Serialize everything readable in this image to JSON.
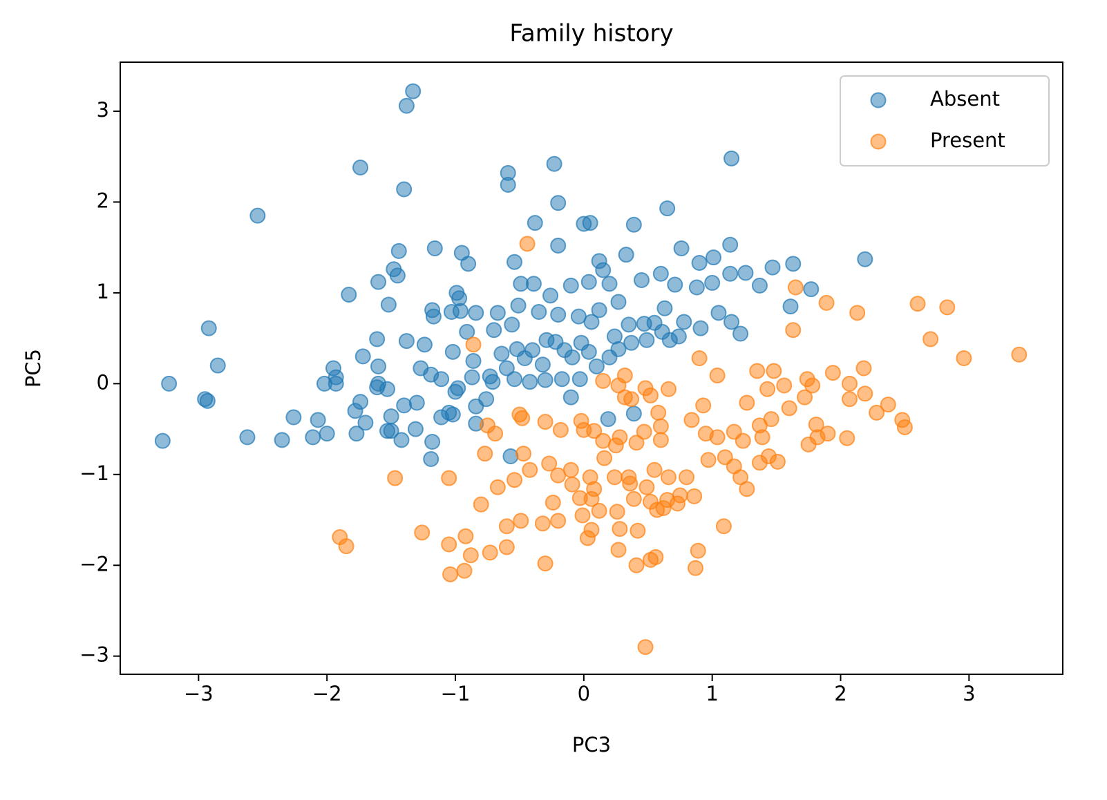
{
  "chart_data": {
    "type": "scatter",
    "title": "Family history",
    "xlabel": "PC3",
    "ylabel": "PC5",
    "xlim": [
      -3.61,
      3.73
    ],
    "ylim": [
      -3.2,
      3.54
    ],
    "xticks": [
      {
        "value": -3,
        "label": "−3"
      },
      {
        "value": -2,
        "label": "−2"
      },
      {
        "value": -1,
        "label": "−1"
      },
      0,
      1,
      2,
      3
    ],
    "yticks": [
      {
        "value": -3,
        "label": "−3"
      },
      {
        "value": -2,
        "label": "−2"
      },
      {
        "value": -1,
        "label": "−1"
      },
      0,
      1,
      2,
      3
    ],
    "legend_position": "upper right",
    "alpha": 0.5,
    "series": [
      {
        "name": "Absent",
        "color": "#1f77b4",
        "x": [
          -1.33,
          -1.38,
          -1.74,
          -1.4,
          -2.54,
          -0.59,
          -0.59,
          -0.23,
          -0.2,
          1.15,
          0.65,
          -0.38,
          0,
          0.05,
          0.39,
          -0.2,
          -1.16,
          -1.44,
          -0.95,
          -0.54,
          0.12,
          0.33,
          0.76,
          1.14,
          2.19,
          1.63,
          1.47,
          1.26,
          1.14,
          1.01,
          0.9,
          -0.9,
          -1.48,
          -1.45,
          -1.6,
          -1.83,
          -1.52,
          -0.99,
          -0.97,
          -1.18,
          -1.17,
          -1.03,
          -0.96,
          -0.84,
          -0.67,
          -0.49,
          -0.39,
          -0.26,
          -0.1,
          0.04,
          0.15,
          0.2,
          0.27,
          0.45,
          0.6,
          0.71,
          0.88,
          1.0,
          1.37,
          1.61,
          1.77,
          1.22,
          1.05,
          1.15,
          0.91,
          0.78,
          0.63,
          0.55,
          0.47,
          0.35,
          0.24,
          0.12,
          0.06,
          -0.04,
          -0.2,
          -0.35,
          -0.51,
          -0.56,
          -0.7,
          -0.91,
          -1.61,
          -1.38,
          -1.24,
          -1.72,
          -1.6,
          -1.6,
          -1.93,
          -2.02,
          -1.95,
          -1.93,
          -2.92,
          -2.85,
          -3.23,
          -2.95,
          -2.93,
          -3.28,
          -2.62,
          -2.35,
          -2.26,
          -2.07,
          -2.11,
          -2.0,
          -1.77,
          -1.7,
          -1.78,
          -1.74,
          -1.61,
          -1.53,
          -1.5,
          -1.53,
          -1.5,
          -1.42,
          -1.4,
          -1.31,
          -1.3,
          -1.19,
          -1.18,
          -1.11,
          -1.05,
          -1.02,
          -1.0,
          -1.02,
          -1.27,
          -1.19,
          -1.11,
          -0.98,
          -0.86,
          -0.87,
          -0.84,
          -0.84,
          -0.76,
          -0.71,
          -0.64,
          -0.6,
          -0.52,
          -0.46,
          -0.4,
          -0.32,
          -0.29,
          -0.22,
          -0.15,
          -0.09,
          -0.02,
          0.04,
          0.1,
          0.2,
          0.27,
          0.37,
          0.49,
          0.61,
          0.67,
          0.74,
          -0.42,
          -0.54,
          -0.73,
          -0.3,
          -0.17,
          -0.03,
          -0.1,
          0.19,
          0.39,
          -0.57
        ],
        "values": [
          3.22,
          3.06,
          2.38,
          2.14,
          1.85,
          2.32,
          2.19,
          2.42,
          1.99,
          2.48,
          1.93,
          1.77,
          1.76,
          1.77,
          1.75,
          1.52,
          1.49,
          1.46,
          1.44,
          1.34,
          1.35,
          1.42,
          1.49,
          1.53,
          1.37,
          1.32,
          1.28,
          1.22,
          1.21,
          1.39,
          1.33,
          1.32,
          1.26,
          1.19,
          1.12,
          0.98,
          0.87,
          1.0,
          0.94,
          0.81,
          0.74,
          0.79,
          0.8,
          0.78,
          0.78,
          1.1,
          1.1,
          0.97,
          1.08,
          1.12,
          1.25,
          1.1,
          0.9,
          1.14,
          1.21,
          1.09,
          1.06,
          1.11,
          1.08,
          0.85,
          1.04,
          0.55,
          0.78,
          0.68,
          0.61,
          0.68,
          0.83,
          0.67,
          0.66,
          0.65,
          0.52,
          0.81,
          0.68,
          0.74,
          0.76,
          0.79,
          0.86,
          0.65,
          0.59,
          0.57,
          0.49,
          0.47,
          0.43,
          0.3,
          0.19,
          0,
          0,
          0,
          0.17,
          0.07,
          0.61,
          0.2,
          0,
          -0.17,
          -0.19,
          -0.63,
          -0.59,
          -0.62,
          -0.37,
          -0.4,
          -0.59,
          -0.55,
          -0.55,
          -0.43,
          -0.3,
          -0.2,
          -0.04,
          -0.06,
          -0.36,
          -0.52,
          -0.52,
          -0.62,
          -0.24,
          -0.5,
          -0.21,
          -0.83,
          -0.64,
          -0.37,
          -0.32,
          -0.34,
          -0.09,
          0.35,
          0.17,
          0.1,
          0.05,
          -0.05,
          0.25,
          0.07,
          -0.25,
          -0.44,
          -0.17,
          0.02,
          0.33,
          0.17,
          0.38,
          0.28,
          0.37,
          0.21,
          0.48,
          0.46,
          0.37,
          0.29,
          0.45,
          0.35,
          0.19,
          0.29,
          0.38,
          0.45,
          0.48,
          0.57,
          0.48,
          0.52,
          0.02,
          0.05,
          0.08,
          0.04,
          0.05,
          0.05,
          -0.15,
          -0.39,
          -0.33,
          -0.8
        ]
      },
      {
        "name": "Present",
        "color": "#ff7f0e",
        "x": [
          -0.44,
          -0.86,
          1.65,
          1.89,
          2.13,
          2.6,
          2.83,
          1.63,
          2.7,
          2.96,
          3.39,
          2.18,
          1.94,
          2.07,
          1.74,
          1.78,
          1.48,
          1.35,
          1.04,
          0.9,
          1.43,
          1.56,
          1.72,
          2.07,
          2.19,
          2.37,
          2.28,
          2.48,
          2.5,
          1.6,
          1.27,
          1.46,
          1.37,
          1.39,
          1.81,
          2.05,
          1.9,
          1.82,
          1.75,
          1.17,
          1.24,
          1.04,
          0.95,
          0.84,
          0.93,
          0.66,
          0.52,
          0.48,
          0.27,
          0.32,
          0.15,
          0.32,
          0.37,
          0.58,
          0.6,
          0.6,
          0.47,
          0.41,
          0.28,
          0.25,
          0.15,
          0.08,
          0.0,
          -0.02,
          -0.18,
          -0.3,
          -0.48,
          -0.5,
          -0.69,
          -0.75,
          -0.77,
          -0.47,
          -0.42,
          -0.54,
          -0.67,
          -0.27,
          -0.2,
          -0.1,
          -0.09,
          0.05,
          0.08,
          0.16,
          0.24,
          0.35,
          0.36,
          0.49,
          0.55,
          0.66,
          0.8,
          0.75,
          0.86,
          0.97,
          1.1,
          1.17,
          1.22,
          1.27,
          1.37,
          1.44,
          1.51,
          0.65,
          0.62,
          0.52,
          0.39,
          0.26,
          0.12,
          0.06,
          -0.03,
          -0.01,
          0.06,
          0.03,
          0.28,
          0.42,
          0.57,
          0.73,
          -0.24,
          -0.32,
          -0.2,
          -0.49,
          -0.6,
          -0.8,
          -0.92,
          -1.05,
          -0.88,
          -0.73,
          -0.6,
          -0.3,
          -0.93,
          -1.04,
          -1.05,
          -1.47,
          -1.26,
          -1.9,
          -1.85,
          0.27,
          0.52,
          0.56,
          0.41,
          0.89,
          0.87,
          1.09,
          0.48
        ],
        "values": [
          1.54,
          0.43,
          1.06,
          0.89,
          0.78,
          0.88,
          0.84,
          0.59,
          0.49,
          0.28,
          0.32,
          0.17,
          0.12,
          0,
          0.05,
          -0.02,
          0.14,
          0.14,
          0.09,
          0.28,
          -0.06,
          -0.02,
          -0.15,
          -0.17,
          -0.11,
          -0.23,
          -0.32,
          -0.4,
          -0.48,
          -0.27,
          -0.21,
          -0.39,
          -0.46,
          -0.59,
          -0.45,
          -0.6,
          -0.55,
          -0.59,
          -0.67,
          -0.53,
          -0.63,
          -0.59,
          -0.55,
          -0.4,
          -0.24,
          -0.06,
          -0.13,
          -0.05,
          -0.02,
          0.09,
          0.03,
          -0.15,
          -0.17,
          -0.32,
          -0.47,
          -0.62,
          -0.53,
          -0.65,
          -0.59,
          -0.68,
          -0.63,
          -0.52,
          -0.51,
          -0.41,
          -0.51,
          -0.42,
          -0.38,
          -0.34,
          -0.55,
          -0.46,
          -0.77,
          -0.77,
          -0.95,
          -1.06,
          -1.14,
          -0.88,
          -1.01,
          -0.95,
          -1.11,
          -1.03,
          -1.16,
          -0.82,
          -1.03,
          -1.03,
          -1.1,
          -1.14,
          -0.95,
          -1.03,
          -1.03,
          -1.23,
          -1.24,
          -0.84,
          -0.81,
          -0.91,
          -1.03,
          -1.16,
          -0.87,
          -0.8,
          -0.86,
          -1.28,
          -1.37,
          -1.3,
          -1.27,
          -1.41,
          -1.4,
          -1.27,
          -1.26,
          -1.45,
          -1.61,
          -1.7,
          -1.6,
          -1.62,
          -1.39,
          -1.32,
          -1.31,
          -1.54,
          -1.51,
          -1.51,
          -1.57,
          -1.33,
          -1.68,
          -1.77,
          -1.89,
          -1.86,
          -1.8,
          -1.98,
          -2.06,
          -2.1,
          -1.04,
          -1.04,
          -1.64,
          -1.69,
          -1.79,
          -1.83,
          -1.94,
          -1.91,
          -2.0,
          -1.84,
          -2.03,
          -1.57,
          -2.9
        ]
      }
    ]
  }
}
